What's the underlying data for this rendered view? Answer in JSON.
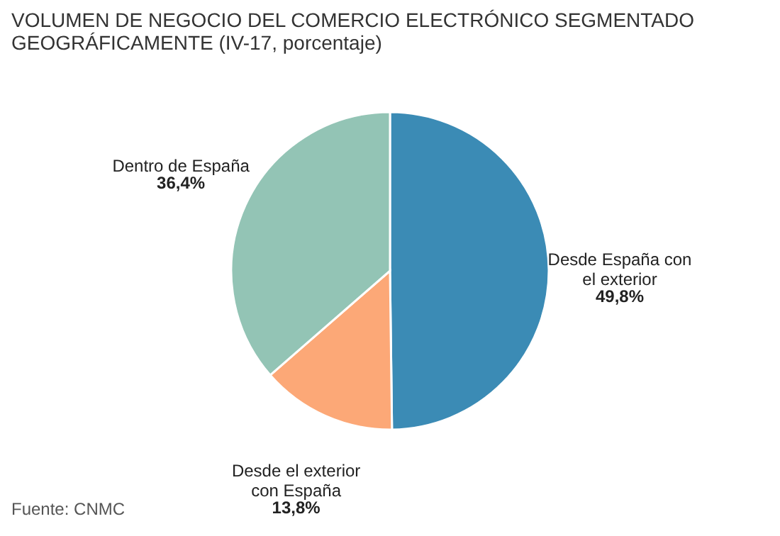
{
  "chart_data": {
    "type": "pie",
    "title": "VOLUMEN DE NEGOCIO DEL COMERCIO ELECTRÓNICO SEGMENTADO GEOGRÁFICAMENTE (IV-17, porcentaje)",
    "categories": [
      "Desde España con el exterior",
      "Desde el exterior con España",
      "Dentro de España"
    ],
    "values": [
      49.8,
      13.8,
      36.4
    ],
    "colors": [
      "#3b8bb5",
      "#fca877",
      "#93c4b5"
    ],
    "value_labels": [
      "49,8%",
      "13,8%",
      "36,4%"
    ],
    "annotations": [
      "Fuente: CNMC"
    ]
  }
}
